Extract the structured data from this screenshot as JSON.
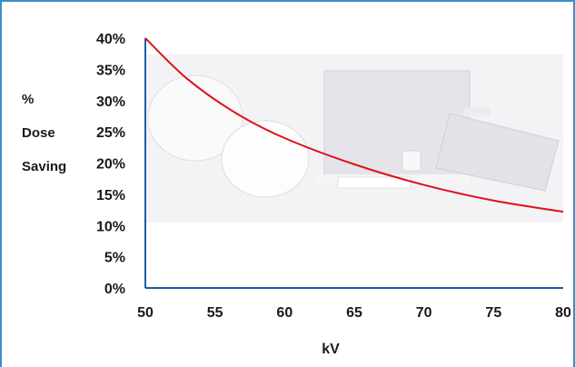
{
  "chart_data": {
    "type": "line",
    "title": "",
    "xlabel": "kV",
    "ylabel_lines": [
      "%",
      "Dose",
      "Saving"
    ],
    "xlim": [
      50,
      80
    ],
    "ylim": [
      0,
      40
    ],
    "x_ticks": [
      "50",
      "55",
      "60",
      "65",
      "70",
      "75",
      "80"
    ],
    "y_ticks": [
      "0%",
      "5%",
      "10%",
      "15%",
      "20%",
      "25%",
      "30%",
      "35%",
      "40%"
    ],
    "series": [
      {
        "x": [
          50,
          53,
          56.5,
          60,
          65,
          70,
          75,
          80
        ],
        "y": [
          40,
          33.5,
          28,
          24,
          19.8,
          16.5,
          14,
          12.2
        ]
      }
    ],
    "grid": false,
    "line_color": "#e0101c",
    "axis_color": "#1e5ba8",
    "frame_color": "#3a8fc7",
    "background_image": "product-photo"
  }
}
